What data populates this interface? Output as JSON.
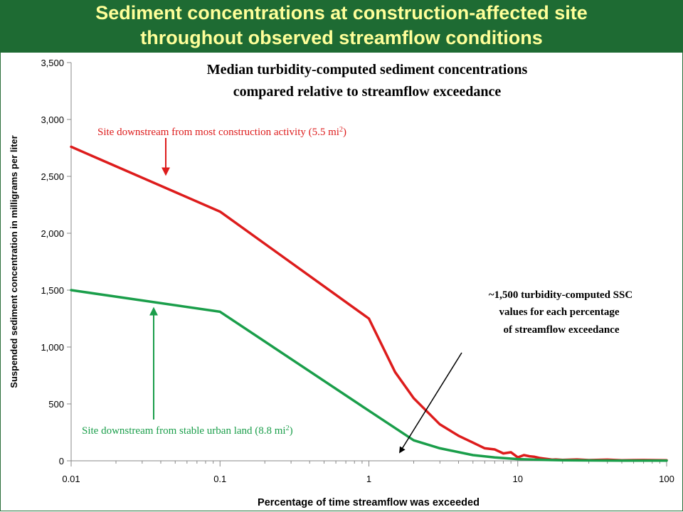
{
  "banner": {
    "line1": "Sediment concentrations at construction-affected site",
    "line2": "throughout observed streamflow conditions",
    "background": "#1e6b33",
    "text_color": "#ffff99"
  },
  "chart_data": {
    "type": "line",
    "title_lines": [
      "Median turbidity-computed sediment concentrations",
      "compared relative to streamflow exceedance"
    ],
    "xlabel": "Percentage of time streamflow was exceeded",
    "ylabel": "Suspended sediment concentration in milligrams per liter",
    "x_scale": "log",
    "xlim": [
      0.01,
      100
    ],
    "ylim": [
      0,
      3500
    ],
    "x_ticks": [
      0.01,
      0.1,
      1,
      10,
      100
    ],
    "x_tick_labels": [
      "0.01",
      "0.1",
      "1",
      "10",
      "100"
    ],
    "y_ticks": [
      0,
      500,
      1000,
      1500,
      2000,
      2500,
      3000,
      3500
    ],
    "y_tick_labels": [
      "0",
      "500",
      "1,000",
      "1,500",
      "2,000",
      "2,500",
      "3,000",
      "3,500"
    ],
    "grid": false,
    "series": [
      {
        "id": "construction",
        "color": "#dd1c1c",
        "x": [
          0.01,
          0.1,
          1,
          1.5,
          2,
          3,
          4,
          5,
          6,
          7,
          8,
          9,
          10,
          11,
          12,
          13,
          14,
          15,
          16,
          17,
          18,
          20,
          25,
          30,
          40,
          50,
          70,
          100
        ],
        "y": [
          2760,
          2190,
          1250,
          780,
          550,
          320,
          220,
          160,
          110,
          100,
          65,
          75,
          30,
          50,
          40,
          35,
          25,
          20,
          15,
          10,
          12,
          8,
          12,
          6,
          10,
          5,
          7,
          5
        ]
      },
      {
        "id": "urban",
        "color": "#1a9e4a",
        "x": [
          0.01,
          0.1,
          1,
          2,
          3,
          5,
          7,
          10,
          15,
          20,
          30,
          50,
          100
        ],
        "y": [
          1500,
          1310,
          440,
          180,
          110,
          50,
          30,
          15,
          8,
          5,
          3,
          2,
          1
        ]
      }
    ],
    "annotations": {
      "construction_label": {
        "text": "Site downstream from most construction activity (5.5 mi",
        "sup": "2",
        "close": ")",
        "color": "#dd1c1c"
      },
      "urban_label": {
        "text": "Site downstream from stable urban land (8.8 mi",
        "sup": "2",
        "close": ")",
        "color": "#1a9e4a"
      },
      "ssc_note": [
        "~1,500 turbidity-computed SSC",
        "values for each percentage",
        "of streamflow exceedance"
      ]
    }
  }
}
